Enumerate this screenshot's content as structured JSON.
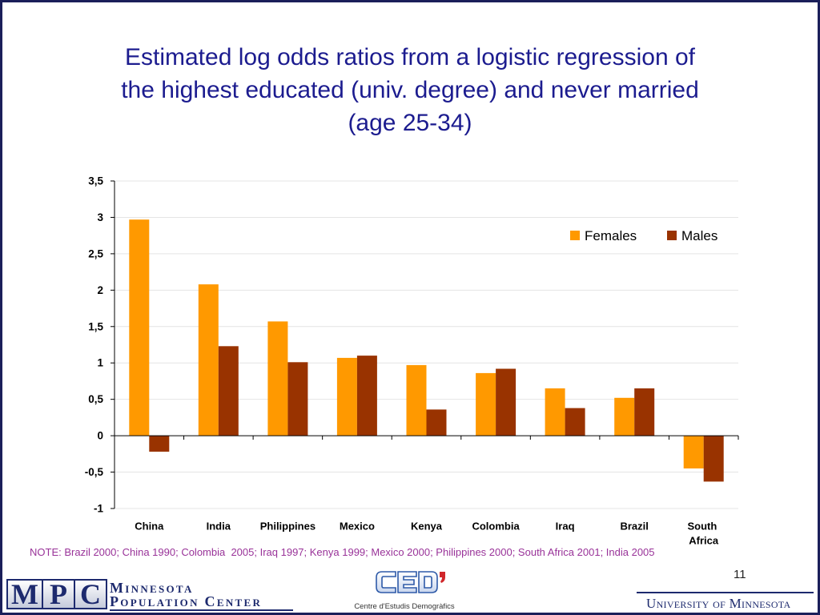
{
  "slide": {
    "title_lines": [
      "Estimated log odds ratios from a logistic regression of",
      "the highest educated (univ. degree) and never married",
      "(age 25-34)"
    ],
    "note": "NOTE: Brazil 2000; China 1990; Colombia  2005; Iraq 1997; Kenya 1999; Mexico 2000; Philippines 2000; South Africa 2001; India 2005",
    "page_number": "11"
  },
  "colors": {
    "title": "#1c1c8f",
    "note": "#993399",
    "frame": "#1b1f5a",
    "logo_navy": "#1d2a6e"
  },
  "chart_data": {
    "type": "bar",
    "categories": [
      "China",
      "India",
      "Philippines",
      "Mexico",
      "Kenya",
      "Colombia",
      "Iraq",
      "Brazil",
      "South Africa"
    ],
    "series": [
      {
        "name": "Females",
        "color": "#FF9900",
        "values": [
          2.97,
          2.08,
          1.57,
          1.07,
          0.97,
          0.86,
          0.65,
          0.52,
          -0.45
        ]
      },
      {
        "name": "Males",
        "color": "#993300",
        "values": [
          -0.22,
          1.23,
          1.01,
          1.1,
          0.36,
          0.92,
          0.38,
          0.65,
          -0.63
        ]
      }
    ],
    "ylim": [
      -1,
      3.5
    ],
    "yticks": [
      3.5,
      3,
      2.5,
      2,
      1.5,
      1,
      0.5,
      0,
      -0.5,
      -1
    ],
    "ytick_labels": [
      "3,5",
      "3",
      "2,5",
      "2",
      "1,5",
      "1",
      "0,5",
      "0",
      "-0,5",
      "-1"
    ],
    "grid": true,
    "legend": "top-right"
  },
  "footer": {
    "mpc": {
      "logo_letters": [
        "M",
        "P",
        "C"
      ],
      "line1": "Minnesota",
      "line2": "Population Center"
    },
    "ced": {
      "logo_letters": "CED",
      "caption": "Centre d'Estudis Demogràfics"
    },
    "university": "University of Minnesota"
  }
}
